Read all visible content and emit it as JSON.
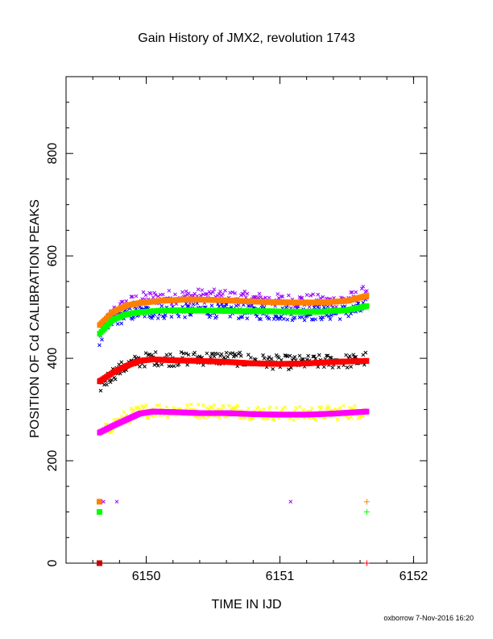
{
  "chart_data": {
    "type": "scatter",
    "title": "Gain History of JMX2, revolution 1743",
    "xlabel": "TIME IN IJD",
    "ylabel": "POSITION OF Cd CALIBRATION PEAKS",
    "xlim": [
      6149.4,
      6152.1
    ],
    "ylim": [
      0,
      950
    ],
    "x_ticks": [
      6150,
      6151,
      6152
    ],
    "y_ticks": [
      0,
      200,
      400,
      600,
      800
    ],
    "grid": false,
    "legend": "none",
    "t_start": 6149.65,
    "t_end": 6151.65,
    "series": [
      {
        "kind": "scatter",
        "color": "#9900ff",
        "marker": "x",
        "points": [
          [
            6149.65,
            445
          ],
          [
            6149.75,
            490
          ],
          [
            6149.85,
            505
          ],
          [
            6149.95,
            515
          ],
          [
            6150.05,
            518
          ],
          [
            6150.2,
            520
          ],
          [
            6150.4,
            522
          ],
          [
            6150.6,
            520
          ],
          [
            6150.8,
            515
          ],
          [
            6151.0,
            512
          ],
          [
            6151.2,
            512
          ],
          [
            6151.4,
            510
          ],
          [
            6151.6,
            520
          ],
          [
            6151.65,
            535
          ]
        ]
      },
      {
        "kind": "scatter",
        "color": "#0000ff",
        "marker": "x",
        "points": [
          [
            6149.65,
            435
          ],
          [
            6149.75,
            475
          ],
          [
            6149.85,
            485
          ],
          [
            6149.95,
            490
          ],
          [
            6150.05,
            490
          ],
          [
            6150.2,
            492
          ],
          [
            6150.4,
            494
          ],
          [
            6150.6,
            492
          ],
          [
            6150.8,
            490
          ],
          [
            6151.0,
            488
          ],
          [
            6151.2,
            488
          ],
          [
            6151.4,
            488
          ],
          [
            6151.6,
            495
          ],
          [
            6151.65,
            505
          ]
        ]
      },
      {
        "kind": "scatter",
        "color": "#000000",
        "marker": "x",
        "points": [
          [
            6149.65,
            345
          ],
          [
            6149.75,
            370
          ],
          [
            6149.85,
            385
          ],
          [
            6149.95,
            395
          ],
          [
            6150.05,
            400
          ],
          [
            6150.2,
            398
          ],
          [
            6150.4,
            400
          ],
          [
            6150.6,
            400
          ],
          [
            6150.8,
            395
          ],
          [
            6151.0,
            392
          ],
          [
            6151.2,
            392
          ],
          [
            6151.4,
            394
          ],
          [
            6151.6,
            395
          ],
          [
            6151.65,
            400
          ]
        ]
      },
      {
        "kind": "scatter",
        "color": "#ffff00",
        "marker": "x",
        "points": [
          [
            6149.65,
            248
          ],
          [
            6149.75,
            270
          ],
          [
            6149.85,
            285
          ],
          [
            6149.95,
            295
          ],
          [
            6150.05,
            300
          ],
          [
            6150.2,
            298
          ],
          [
            6150.4,
            298
          ],
          [
            6150.6,
            298
          ],
          [
            6150.8,
            295
          ],
          [
            6151.0,
            292
          ],
          [
            6151.2,
            292
          ],
          [
            6151.4,
            294
          ],
          [
            6151.6,
            296
          ],
          [
            6151.65,
            300
          ]
        ]
      },
      {
        "kind": "line",
        "color": "#ff8000",
        "points": [
          [
            6149.65,
            465
          ],
          [
            6149.75,
            490
          ],
          [
            6149.85,
            503
          ],
          [
            6149.95,
            508
          ],
          [
            6150.1,
            512
          ],
          [
            6150.3,
            515
          ],
          [
            6150.5,
            514
          ],
          [
            6150.7,
            512
          ],
          [
            6150.9,
            510
          ],
          [
            6151.1,
            509
          ],
          [
            6151.3,
            509
          ],
          [
            6151.5,
            512
          ],
          [
            6151.65,
            522
          ]
        ]
      },
      {
        "kind": "line",
        "color": "#00ff00",
        "points": [
          [
            6149.65,
            448
          ],
          [
            6149.75,
            475
          ],
          [
            6149.85,
            486
          ],
          [
            6149.95,
            490
          ],
          [
            6150.1,
            493
          ],
          [
            6150.3,
            494
          ],
          [
            6150.5,
            493
          ],
          [
            6150.7,
            492
          ],
          [
            6150.9,
            492
          ],
          [
            6151.1,
            491
          ],
          [
            6151.3,
            491
          ],
          [
            6151.5,
            494
          ],
          [
            6151.65,
            502
          ]
        ]
      },
      {
        "kind": "line",
        "color": "#ff0000",
        "points": [
          [
            6149.65,
            355
          ],
          [
            6149.75,
            372
          ],
          [
            6149.85,
            385
          ],
          [
            6149.95,
            395
          ],
          [
            6150.05,
            398
          ],
          [
            6150.2,
            396
          ],
          [
            6150.4,
            395
          ],
          [
            6150.6,
            393
          ],
          [
            6150.8,
            390
          ],
          [
            6151.0,
            389
          ],
          [
            6151.2,
            390
          ],
          [
            6151.4,
            393
          ],
          [
            6151.65,
            395
          ]
        ]
      },
      {
        "kind": "line",
        "color": "#ff00ff",
        "points": [
          [
            6149.65,
            255
          ],
          [
            6149.75,
            268
          ],
          [
            6149.85,
            280
          ],
          [
            6149.95,
            292
          ],
          [
            6150.05,
            296
          ],
          [
            6150.2,
            295
          ],
          [
            6150.4,
            293
          ],
          [
            6150.6,
            293
          ],
          [
            6150.8,
            291
          ],
          [
            6151.0,
            290
          ],
          [
            6151.2,
            290
          ],
          [
            6151.4,
            292
          ],
          [
            6151.65,
            296
          ]
        ]
      },
      {
        "kind": "markers",
        "color": "#ff8000",
        "marker": "square",
        "points": [
          [
            6149.65,
            120
          ]
        ]
      },
      {
        "kind": "markers",
        "color": "#9900ff",
        "marker": "x",
        "points": [
          [
            6149.68,
            120
          ],
          [
            6149.78,
            120
          ],
          [
            6151.08,
            120
          ]
        ]
      },
      {
        "kind": "markers",
        "color": "#ff8000",
        "marker": "plus",
        "points": [
          [
            6151.65,
            120
          ]
        ]
      },
      {
        "kind": "markers",
        "color": "#00ff00",
        "marker": "square",
        "points": [
          [
            6149.65,
            100
          ]
        ]
      },
      {
        "kind": "markers",
        "color": "#00ff00",
        "marker": "plus",
        "points": [
          [
            6151.65,
            100
          ]
        ]
      },
      {
        "kind": "markers",
        "color": "#cc0000",
        "marker": "square",
        "points": [
          [
            6149.65,
            0
          ]
        ]
      },
      {
        "kind": "markers",
        "color": "#ff0000",
        "marker": "plus",
        "points": [
          [
            6151.65,
            0
          ]
        ]
      }
    ]
  },
  "footer": "oxborrow  7-Nov-2016 16:20"
}
